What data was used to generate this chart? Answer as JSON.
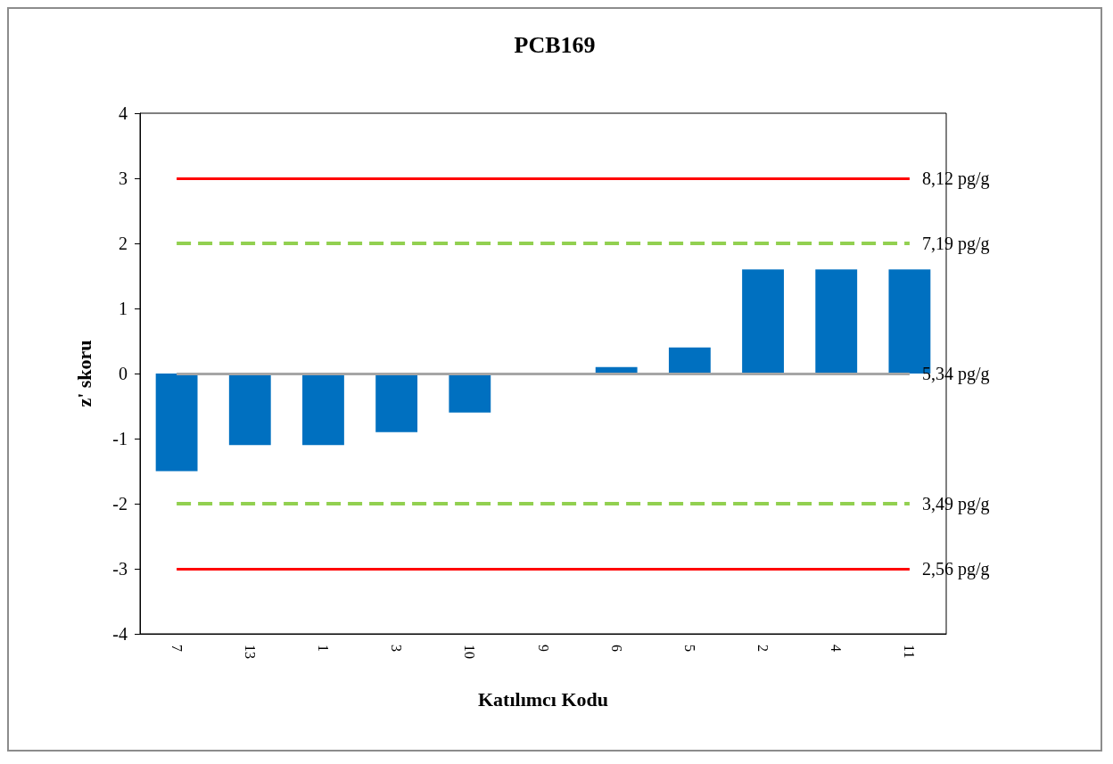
{
  "chart_data": {
    "type": "bar",
    "title": "PCB169",
    "xlabel": "Katılımcı Kodu",
    "ylabel": "z' skoru",
    "categories": [
      "7",
      "13",
      "1",
      "3",
      "10",
      "9",
      "6",
      "5",
      "2",
      "4",
      "11"
    ],
    "values": [
      -1.5,
      -1.1,
      -1.1,
      -0.9,
      -0.6,
      0,
      0.1,
      0.4,
      1.6,
      1.6,
      1.6
    ],
    "color": "#0070c0",
    "ylim": [
      -4,
      4
    ],
    "yticks": [
      -4,
      -3,
      -2,
      -1,
      0,
      1,
      2,
      3,
      4
    ],
    "grid": false,
    "ref_lines": [
      {
        "axis": "y",
        "value": 3,
        "label": "8,12 pg/g",
        "color": "#ff0000",
        "line_style": "solid"
      },
      {
        "axis": "y",
        "value": 2,
        "label": "7,19 pg/g",
        "color": "#92d050",
        "line_style": "dashed"
      },
      {
        "axis": "y",
        "value": 0,
        "label": "5,34 pg/g",
        "color": "#a6a6a6",
        "line_style": "solid"
      },
      {
        "axis": "y",
        "value": -2,
        "label": "3,49 pg/g",
        "color": "#92d050",
        "line_style": "dashed"
      },
      {
        "axis": "y",
        "value": -3,
        "label": "2,56 pg/g",
        "color": "#ff0000",
        "line_style": "solid"
      }
    ]
  }
}
